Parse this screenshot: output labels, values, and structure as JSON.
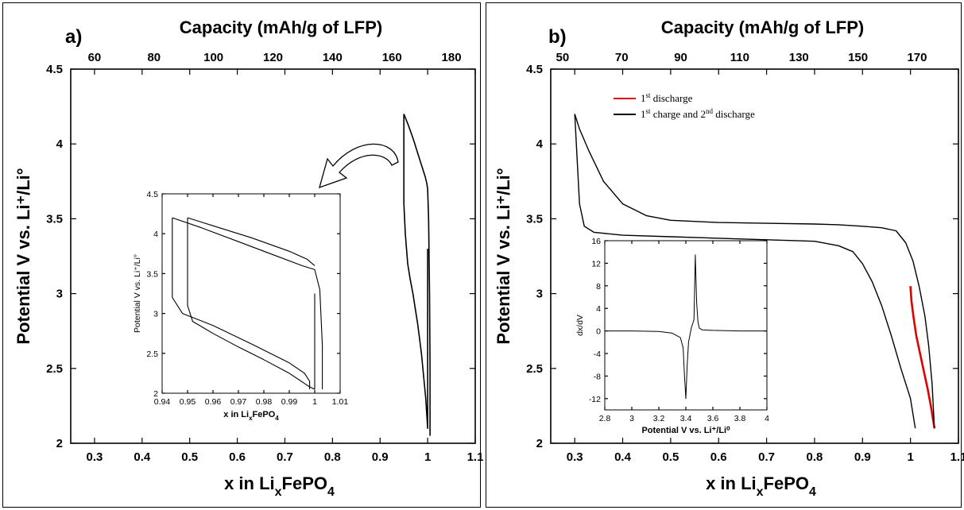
{
  "chart_data": [
    {
      "panel_label": "a)",
      "type": "line",
      "xlabel_main": "x in Li",
      "xlabel_sub": "x",
      "xlabel_tail": "FePO",
      "xlabel_sub2": "4",
      "ylabel": "Potential V vs. Li⁺/Li°",
      "x2label": "Capacity (mAh/g of LFP)",
      "xlim": [
        0.25,
        1.1
      ],
      "ylim": [
        2,
        4.5
      ],
      "xticks": [
        "0.3",
        "0.4",
        "0.5",
        "0.6",
        "0.7",
        "0.8",
        "0.9",
        "1",
        "1.1"
      ],
      "yticks": [
        "2",
        "2.5",
        "3",
        "3.5",
        "4",
        "4.5"
      ],
      "x2ticks": [
        "60",
        "80",
        "100",
        "120",
        "140",
        "160",
        "180"
      ],
      "series": [
        {
          "x": [
            1.0,
            1.0,
            0.998,
            0.996,
            0.993,
            0.99,
            0.987,
            0.983,
            0.979,
            0.974,
            0.969,
            0.963,
            0.958,
            0.953,
            0.95,
            0.95,
            0.95,
            0.95
          ],
          "y": [
            3.3,
            2.1,
            2.2,
            2.3,
            2.4,
            2.5,
            2.6,
            2.7,
            2.8,
            2.9,
            3.0,
            3.1,
            3.2,
            3.4,
            3.6,
            3.8,
            4.0,
            4.2
          ]
        },
        {
          "x": [
            0.95,
            0.96,
            0.97,
            0.98,
            0.99,
            0.995,
            0.998,
            1.0,
            1.002,
            1.004,
            1.005,
            1.005
          ],
          "y": [
            4.2,
            4.12,
            4.03,
            3.93,
            3.83,
            3.78,
            3.74,
            3.7,
            3.5,
            3.0,
            2.5,
            2.05
          ]
        }
      ],
      "inset": {
        "xlabel_main": "x in Li",
        "xlabel_sub": "x",
        "xlabel_tail": "FePO",
        "xlabel_sub2": "4",
        "ylabel": "Potential V vs. Li⁺/Li°",
        "xlim": [
          0.94,
          1.01
        ],
        "ylim": [
          2,
          4.5
        ],
        "xticks": [
          "0.94",
          "0.95",
          "0.96",
          "0.97",
          "0.98",
          "0.99",
          "1",
          "1.01"
        ],
        "yticks": [
          "2",
          "2.5",
          "3",
          "3.5",
          "4",
          "4.5"
        ],
        "series": [
          {
            "x": [
              1.0,
              1.0,
              0.998,
              0.99,
              0.98,
              0.97,
              0.96,
              0.952,
              0.95,
              0.95,
              0.95
            ],
            "y": [
              3.25,
              2.05,
              2.08,
              2.25,
              2.42,
              2.58,
              2.75,
              2.9,
              3.1,
              3.6,
              4.2
            ]
          },
          {
            "x": [
              0.944,
              0.955,
              0.97,
              0.985,
              0.995,
              1.0,
              1.002,
              1.003,
              1.003
            ],
            "y": [
              4.2,
              4.08,
              3.9,
              3.72,
              3.6,
              3.55,
              3.3,
              2.6,
              2.05
            ]
          },
          {
            "x": [
              0.944,
              0.944,
              0.948,
              0.96,
              0.975,
              0.99,
              0.996,
              0.998,
              0.998
            ],
            "y": [
              4.2,
              3.2,
              3.0,
              2.85,
              2.62,
              2.38,
              2.25,
              2.15,
              2.05
            ]
          },
          {
            "x": [
              0.95,
              0.96,
              0.975,
              0.99,
              0.997,
              1.0
            ],
            "y": [
              4.2,
              4.1,
              3.95,
              3.78,
              3.68,
              3.6
            ]
          }
        ]
      }
    },
    {
      "panel_label": "b)",
      "type": "line",
      "xlabel_main": "x in Li",
      "xlabel_sub": "x",
      "xlabel_tail": "FePO",
      "xlabel_sub2": "4",
      "ylabel": "Potential V vs. Li⁺/Li°",
      "x2label": "Capacity (mAh/g of LFP)",
      "xlim": [
        0.25,
        1.1
      ],
      "ylim": [
        2,
        4.5
      ],
      "xticks": [
        "0.3",
        "0.4",
        "0.5",
        "0.6",
        "0.7",
        "0.8",
        "0.9",
        "1",
        "1.1"
      ],
      "yticks": [
        "2",
        "2.5",
        "3",
        "3.5",
        "4",
        "4.5"
      ],
      "x2ticks": [
        "50",
        "70",
        "90",
        "110",
        "130",
        "150",
        "170"
      ],
      "legend": [
        {
          "label": "1",
          "sup": "st",
          "tail": " discharge",
          "color": "#e00000"
        },
        {
          "label": "1",
          "sup": "st",
          "tail": " charge and 2",
          "sup2": "nd",
          "tail2": " discharge",
          "color": "#000000"
        }
      ],
      "series": [
        {
          "name": "1st discharge",
          "color": "#e00000",
          "x": [
            1.0,
            1.002,
            1.006,
            1.012,
            1.02,
            1.028,
            1.036,
            1.043,
            1.048,
            1.05
          ],
          "y": [
            3.05,
            2.95,
            2.85,
            2.72,
            2.6,
            2.48,
            2.36,
            2.24,
            2.14,
            2.1
          ]
        },
        {
          "name": "1st charge and 2nd discharge",
          "color": "#000000",
          "x": [
            1.05,
            1.045,
            1.038,
            1.03,
            1.018,
            1.005,
            0.99,
            0.97,
            0.94,
            0.9,
            0.85,
            0.8,
            0.7,
            0.6,
            0.5,
            0.45,
            0.4,
            0.36,
            0.33,
            0.31,
            0.3
          ],
          "y": [
            2.1,
            2.4,
            2.65,
            2.85,
            3.05,
            3.22,
            3.34,
            3.42,
            3.44,
            3.45,
            3.46,
            3.465,
            3.47,
            3.475,
            3.49,
            3.52,
            3.6,
            3.75,
            3.95,
            4.1,
            4.2
          ]
        },
        {
          "name": "1st charge and 2nd discharge",
          "color": "#000000",
          "x": [
            0.3,
            0.305,
            0.31,
            0.32,
            0.34,
            0.4,
            0.5,
            0.6,
            0.7,
            0.8,
            0.85,
            0.88,
            0.9,
            0.92,
            0.94,
            0.96,
            0.98,
            1.0,
            1.01
          ],
          "y": [
            4.2,
            3.9,
            3.6,
            3.45,
            3.41,
            3.39,
            3.38,
            3.37,
            3.36,
            3.35,
            3.32,
            3.28,
            3.2,
            3.08,
            2.92,
            2.72,
            2.5,
            2.3,
            2.1
          ]
        }
      ],
      "inset": {
        "xlabel": "Potential V vs. Li⁺/Li⁰",
        "ylabel": "dx/dV",
        "xlim": [
          2.8,
          4
        ],
        "ylim": [
          -14,
          16
        ],
        "xticks": [
          "2.8",
          "3",
          "3.2",
          "3.4",
          "3.6",
          "3.8",
          "4"
        ],
        "yticks": [
          "-12",
          "-8",
          "-4",
          "0",
          "4",
          "8",
          "12",
          "16"
        ],
        "series": [
          {
            "x": [
              2.8,
              3.0,
              3.2,
              3.3,
              3.36,
              3.38,
              3.39,
              3.4,
              3.41,
              3.42,
              3.44,
              3.46,
              3.47,
              3.48,
              3.49,
              3.5,
              3.52,
              3.6,
              3.8,
              4.0
            ],
            "y": [
              0,
              0,
              -0.1,
              -0.4,
              -1.2,
              -3,
              -8,
              -12,
              -6,
              -2,
              0.5,
              2,
              13.5,
              5,
              1.5,
              0.5,
              0.2,
              0.1,
              0,
              0
            ]
          }
        ]
      }
    }
  ]
}
